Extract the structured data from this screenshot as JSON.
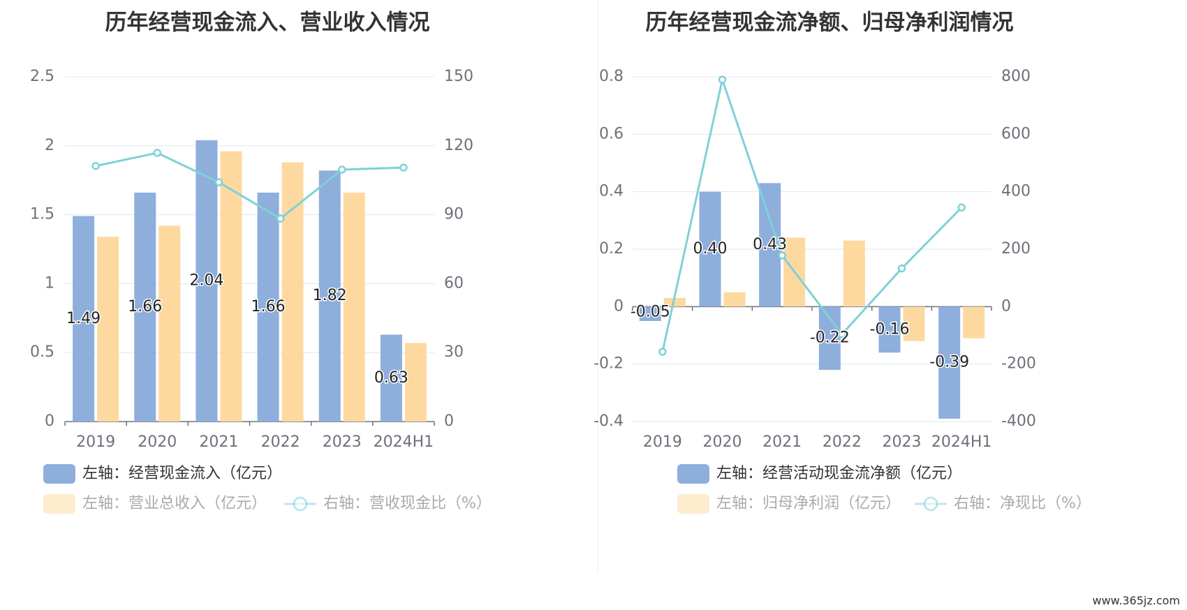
{
  "colors": {
    "bar1": "#8eaedc",
    "bar2": "#fdd9a0",
    "line": "#7fd1d8",
    "grid": "#e0e6f1",
    "axis": "#6e7079",
    "legend_active": "#333333",
    "legend_inactive": "#aaaaaa"
  },
  "watermark": "www.365jz.com",
  "chart_data": [
    {
      "type": "bar",
      "title": "历年经营现金流入、营业收入情况",
      "categories": [
        "2019",
        "2020",
        "2021",
        "2022",
        "2023",
        "2024H1"
      ],
      "ylim_left": [
        0,
        2.5
      ],
      "yticks_left": [
        "0",
        "0.5",
        "1",
        "1.5",
        "2",
        "2.5"
      ],
      "ylim_right": [
        0,
        150
      ],
      "yticks_right": [
        "0",
        "30",
        "60",
        "90",
        "120",
        "150"
      ],
      "grid": true,
      "legend_position": "bottom",
      "series": [
        {
          "name": "左轴：经营现金流入（亿元）",
          "axis": "left",
          "kind": "bar",
          "values": [
            1.49,
            1.66,
            2.04,
            1.66,
            1.82,
            0.63
          ],
          "labels": [
            "1.49",
            "1.66",
            "2.04",
            "1.66",
            "1.82",
            "0.63"
          ]
        },
        {
          "name": "左轴：营业总收入（亿元）",
          "axis": "left",
          "kind": "bar",
          "values": [
            1.34,
            1.42,
            1.96,
            1.88,
            1.66,
            0.57
          ]
        },
        {
          "name": "右轴：营收现金比（%）",
          "axis": "right",
          "kind": "line",
          "values": [
            111.2,
            116.9,
            104.1,
            88.3,
            109.6,
            110.5
          ]
        }
      ]
    },
    {
      "type": "bar",
      "title": "历年经营现金流净额、归母净利润情况",
      "categories": [
        "2019",
        "2020",
        "2021",
        "2022",
        "2023",
        "2024H1"
      ],
      "ylim_left": [
        -0.4,
        0.8
      ],
      "yticks_left": [
        "-0.4",
        "-0.2",
        "0",
        "0.2",
        "0.4",
        "0.6",
        "0.8"
      ],
      "ylim_right": [
        -400,
        800
      ],
      "yticks_right": [
        "-400",
        "-200",
        "0",
        "200",
        "400",
        "600",
        "800"
      ],
      "grid": true,
      "legend_position": "bottom",
      "series": [
        {
          "name": "左轴：经营活动现金流净额（亿元）",
          "axis": "left",
          "kind": "bar",
          "values": [
            -0.05,
            0.4,
            0.43,
            -0.22,
            -0.16,
            -0.39
          ],
          "labels": [
            "-0.05",
            "0.40",
            "0.43",
            "-0.22",
            "-0.16",
            "-0.39"
          ]
        },
        {
          "name": "左轴：归母净利润（亿元）",
          "axis": "left",
          "kind": "bar",
          "values": [
            0.03,
            0.05,
            0.24,
            0.23,
            -0.12,
            -0.11
          ]
        },
        {
          "name": "右轴：净现比（%）",
          "axis": "right",
          "kind": "line",
          "values": [
            -157,
            790,
            178,
            -96,
            133,
            345
          ]
        }
      ]
    }
  ]
}
